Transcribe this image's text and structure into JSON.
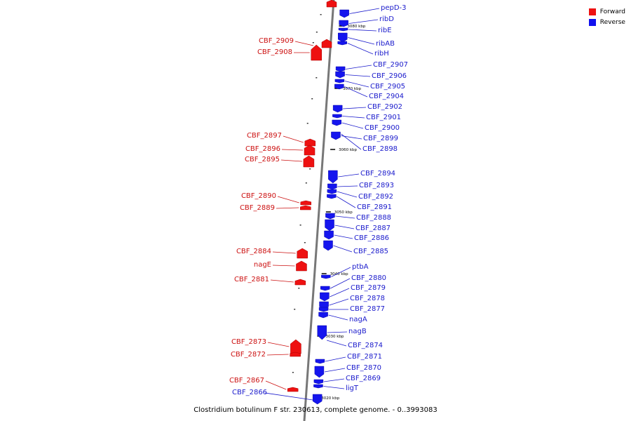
{
  "caption": "Clostridium botulinum F str. 230613, complete genome. - 0..3993083",
  "legend": {
    "forward_label": "Forward",
    "forward_color": "#ff0000",
    "reverse_label": "Reverse",
    "reverse_color": "#0000ff"
  },
  "ticks": [
    "3080 kbp",
    "3070 kbp",
    "3060 kbp",
    "3050 kbp",
    "3040 kbp",
    "3030 kbp",
    "3020 kbp"
  ],
  "forward_genes": [
    "CBF_2909",
    "CBF_2908",
    "CBF_2897",
    "CBF_2896",
    "CBF_2895",
    "CBF_2890",
    "CBF_2889",
    "CBF_2884",
    "nagE",
    "CBF_2881",
    "CBF_2873",
    "CBF_2872",
    "CBF_2867"
  ],
  "reverse_genes": [
    "pepD-3",
    "ribD",
    "ribE",
    "ribAB",
    "ribH",
    "CBF_2907",
    "CBF_2906",
    "CBF_2905",
    "CBF_2904",
    "CBF_2902",
    "CBF_2901",
    "CBF_2900",
    "CBF_2899",
    "CBF_2898",
    "CBF_2894",
    "CBF_2893",
    "CBF_2892",
    "CBF_2891",
    "CBF_2888",
    "CBF_2887",
    "CBF_2886",
    "CBF_2885",
    "ptbA",
    "CBF_2880",
    "CBF_2879",
    "CBF_2878",
    "CBF_2877",
    "nagA",
    "nagB",
    "CBF_2874",
    "CBF_2871",
    "CBF_2870",
    "CBF_2869",
    "ligT",
    "CBF_2866"
  ]
}
